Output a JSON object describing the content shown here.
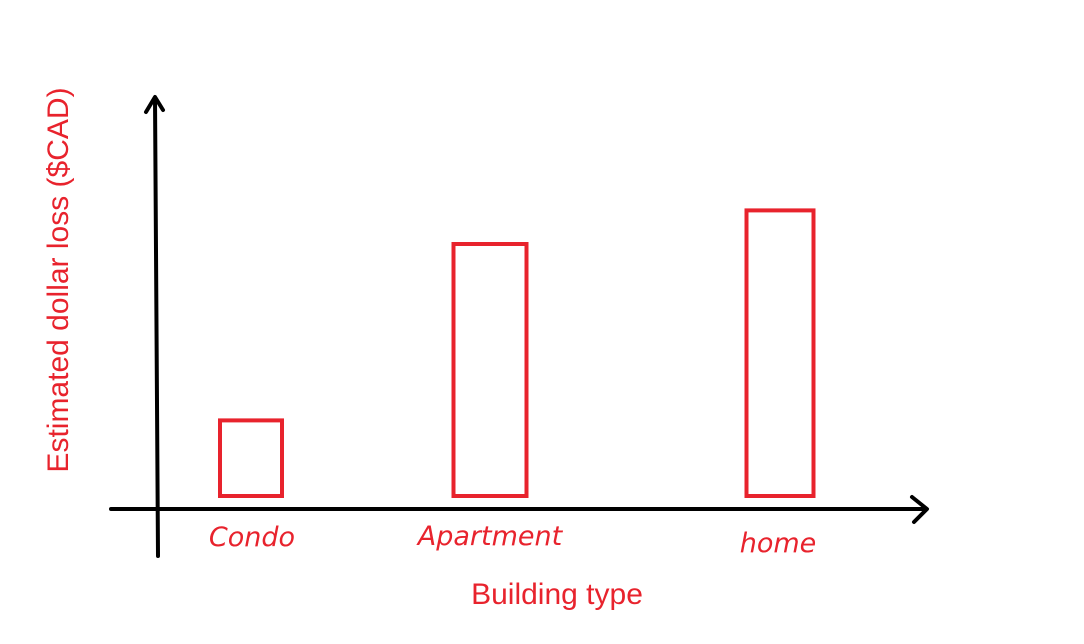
{
  "chart_data": {
    "type": "bar",
    "categories": [
      "Condo",
      "Apartment",
      "home"
    ],
    "values": [
      18,
      60,
      68
    ],
    "xlabel": "Building type",
    "ylabel": "Estimated dollar loss ($CAD)",
    "ylim": [
      0,
      100
    ],
    "grid": false,
    "legend": "none"
  },
  "colors": {
    "bar_stroke": "#e8232d",
    "label_text": "#e8232d",
    "axis": "#000000"
  }
}
